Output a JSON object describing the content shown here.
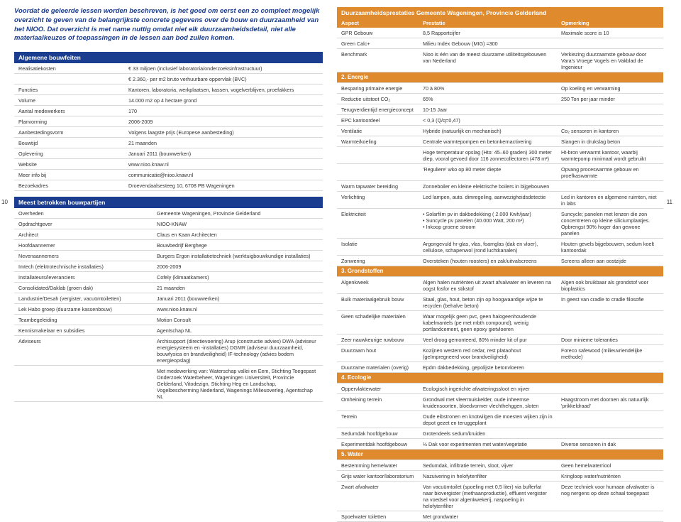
{
  "intro": "Voordat de geleerde lessen worden beschreven, is het goed om eerst een zo compleet mogelijk overzicht te geven van de belangrijkste concrete gegevens over de bouw en duurzaamheid van het NIOO. Dat overzicht is met name nuttig omdat niet elk duurzaamheidsdetail, niet alle materiaalkeuzes of toepassingen in de lessen aan bod zullen komen.",
  "page_left": "10",
  "page_right": "11",
  "sections": {
    "algemene": {
      "title": "Algemene bouwfeiten",
      "rows": [
        [
          "Realisatiekosten",
          "€ 33 miljoen (inclusief laboratoria/onderzoeksinfrastructuur)"
        ],
        [
          "",
          "€ 2.360,- per m2 bruto verhuurbare oppervlak (BVC)"
        ],
        [
          "Functies",
          "Kantoren, laboratoria, werkplaatsen, kassen, vogelverblijven, proefakkers"
        ],
        [
          "Volume",
          "14.000 m2 op 4 hectare grond"
        ],
        [
          "Aantal medewerkers",
          "170"
        ],
        [
          "Planvorming",
          "2006-2009"
        ],
        [
          "Aanbestedingsvorm",
          "Volgens laagste prijs (Europese aanbesteding)"
        ],
        [
          "Bouwtijd",
          "21 maanden"
        ],
        [
          "Oplevering",
          "Januari 2011 (bouwwerken)"
        ],
        [
          "Website",
          "www.nioo.knaw.nl"
        ],
        [
          "Meer info bij",
          "communicatie@nioo.knaw.nl"
        ],
        [
          "Bezoekadres",
          "Droevendaalsesteeg 10, 6708 PB Wageningen"
        ]
      ]
    },
    "partijen": {
      "title": "Meest betrokken bouwpartijen",
      "rows": [
        [
          "Overheden",
          "Gemeente Wageningen, Provincie Gelderland"
        ],
        [
          "Opdrachtgever",
          "NIOO-KNAW"
        ],
        [
          "Architect",
          "Claus en Kaan Architecten"
        ],
        [
          "Hoofdaannemer",
          "Bouwbedrijf Berghege"
        ],
        [
          "Nevenaannemers",
          "Burgers Ergon installatietechniek (werktuigbouwkundige installaties)"
        ],
        [
          "Imtech (elektrotechnische installaties)",
          "2006-2009"
        ],
        [
          "Installateurs/leveranciers",
          "Cofely (klimaatkamers)"
        ],
        [
          "Consolidated/Daklab (groen dak)",
          "21 maanden"
        ],
        [
          "Landustrie/Desah (vergister, vacuümtoiletten)",
          "Januari 2011 (bouwwerken)"
        ],
        [
          "Lek Habo groep (duurzame kassenbouw)",
          "www.nioo.knaw.nl"
        ],
        [
          "Teambegeleiding",
          "Motion Consult"
        ],
        [
          "Kennismakelaar en subsidies",
          "Agentschap NL"
        ],
        [
          "Adviseurs",
          "Archisupport (directievoering)\nArup (constructie advies)\nDWA (adviseur energiesysteem en -installaties)\nDGMR (adviseur duurzaamheid, bouwfysica en brandveiligheid)\nIF-technology (advies bodem energieopslag)"
        ],
        [
          "",
          "Met medewerking van: Waterschap vallei en Eem, Stichting Toegepast Onderzoek Waterbeheer, Wageningen Universiteit, Provincie Gelderland, Vitodezign, Stichting Heg en Landschap, Vogelbescherming Nederland, Wagenings Milieuoverleg, Agentschap NL"
        ]
      ]
    },
    "duurzaam": {
      "title": "Duurzaamheidsprestaties Gemeente Wageningen, Provincie Gelderland",
      "headers": [
        "Aspect",
        "Prestatie",
        "Opmerking"
      ],
      "rows": [
        [
          "GPR Gebouw",
          "8,5 Rapportcijfer",
          "Maximale score is 10"
        ],
        [
          "Green Calc+",
          "Milieu Index Gebouw (MIG) =300",
          ""
        ],
        [
          "Benchmark",
          "Nioo is één van de meest duurzame utiliteitsgebouwen van Nederland",
          "Verkiezing duurzaamste gebouw door Vara's Vroege Vogels en Vakblad de Ingenieur"
        ]
      ],
      "groups": [
        {
          "title": "2. Energie",
          "rows": [
            [
              "Besparing primaire energie",
              "70 à 80%",
              "Op koeling en verwarming"
            ],
            [
              "Reductie uitstoot CO₂",
              "65%",
              "250 Ton per jaar minder"
            ],
            [
              "Terugverdientijd energieconcept",
              "10-15 Jaar",
              ""
            ],
            [
              "EPC kantoordeel",
              "< 0,3 (Q/q=0,47)",
              ""
            ],
            [
              "Ventilatie",
              "Hybride (natuurlijk en mechanisch)",
              "Co₂ sensoren in kantoren"
            ],
            [
              "Warmte/koeling",
              "Centrale warmtepompen en betonkernactivering",
              "Slangen in drukslag beton"
            ],
            [
              "",
              "Hoge temperatuur opslag (Hto: 45–60 graden) 300 meter diep, vooral gevoed door 116 zonnecollectoren (478 m²)",
              "Ht-bron verwarmt kantoor, waarbij warmtepomp minimaal wordt gebruikt"
            ],
            [
              "",
              "'Reguliere' wko op 80 meter diepte",
              "Opvang proceswarmte gebouw en proefkaswarmte"
            ],
            [
              "Warm tapwater bereiding",
              "Zonneboiler en kleine elektrische boilers in bijgebouwen",
              ""
            ],
            [
              "Verlichting",
              "Led lampen, auto. dimregeling, aanwezigheidsdetectie",
              "Led in kantoren en algemene ruimten, niet in labs"
            ],
            [
              "Elektriciteit",
              "• Solarfilm pv in dakbedekking ( 2.000 Kwh/jaar)\n• Suncycle pv panelen (40.000 Watt, 200 m²)\n• Inkoop groene stroom",
              "Suncycle; panelen met lenzen die zon concentreren op kleine siliciumplaatjes. Opbrengst 90% hoger dan gewone panelen"
            ],
            [
              "Isolatie",
              "Argongevuld hr-glas, vlas, foamglas (dak en vloer), cellulose, schapenwol (rond luchtkanalen)",
              "Houten gevels bijgebouwen, sedum koelt kantoordak"
            ],
            [
              "Zonwering",
              "Oversteken (houten roosters) en zak/uitvalscreens",
              "Screens alleen aan oostzijde"
            ]
          ]
        },
        {
          "title": "3. Grondstoffen",
          "rows": [
            [
              "Algenkweek",
              "Algen halen nutriënten uit zwart afvalwater en leveren na oogst fosfor en stikstof",
              "Algen ook bruikbaar als grondstof voor bioplastics"
            ],
            [
              "Bulk materiaalgebruik bouw",
              "Staal, glas, hout, beton zijn op hoogwaardige wijze te recyclen (behalve beton)",
              "In geest van cradle to cradle filosofie"
            ],
            [
              "Geen schadelijke materialen",
              "Waar mogelijk geen pvc, geen halogeenhoudende kabelmantels (pe met mbth compound), weinig portlandcement, geen epoxy gietvloeren",
              ""
            ],
            [
              "Zeer nauwkeurige ruwbouw",
              "Veel droog gemonteerd, 80% minder kit of pur",
              "Door minieme toleranties"
            ],
            [
              "Duurzaam hout",
              "Kozijnen western red cedar, rest plataohout (geïmpregneerd voor brandveiligheid)",
              "Foreco safewood (milieuvriendelijke methode)"
            ],
            [
              "Duurzame materialen (overig)",
              "Epdm dakbedekking, gepolijste betonvloeren",
              ""
            ]
          ]
        },
        {
          "title": "4. Ecologie",
          "rows": [
            [
              "Oppervlaktewater",
              "Ecologisch ingerichte afwateringssloot en vijver",
              ""
            ],
            [
              "Omheining terrein",
              "Grondwal met vleermuiskelder, oude inheemse kruidensoorten, bloedvormer vlechthehggen, sloten",
              "Haagstroom met doornen als natuurlijk 'prikkeldraad'"
            ],
            [
              "Terrein",
              "Oude eibstronen en knotwilgen die moesten wijken zijn in depot gezet en teruggeplant",
              ""
            ],
            [
              "Sedumdak hoofdgebouw",
              "Grotendeels sedum/kruiden",
              ""
            ],
            [
              "Experimentdak hoofdgebouw",
              "½ Dak voor experimenten met water/vegetatie",
              "Diverse sensoren in dak"
            ]
          ]
        },
        {
          "title": "5. Water",
          "rows": [
            [
              "Bestemming hemelwater",
              "Sedumdak, infiltratie terrein, sloot, vijver",
              "Geen hemelwaterriool"
            ],
            [
              "Grijs water kantoor/laboratorium",
              "Nazuivering in helofytenfilter",
              "Kringloop water/nutriënten"
            ],
            [
              "Zwart afvalwater",
              "Van vacuümtoilet (spoeling met 0,5 liter) via bufferfat naar biovergister (methaanproductie), effluent vergister na voedsel voor algenkwekerij, naspoeling in helofytenfilter",
              "Deze techniek voor humaan afvalwater is nog nergens op deze schaal toegepast"
            ],
            [
              "Spoelwater toiletten",
              "Met grondwater",
              ""
            ]
          ]
        }
      ]
    }
  }
}
